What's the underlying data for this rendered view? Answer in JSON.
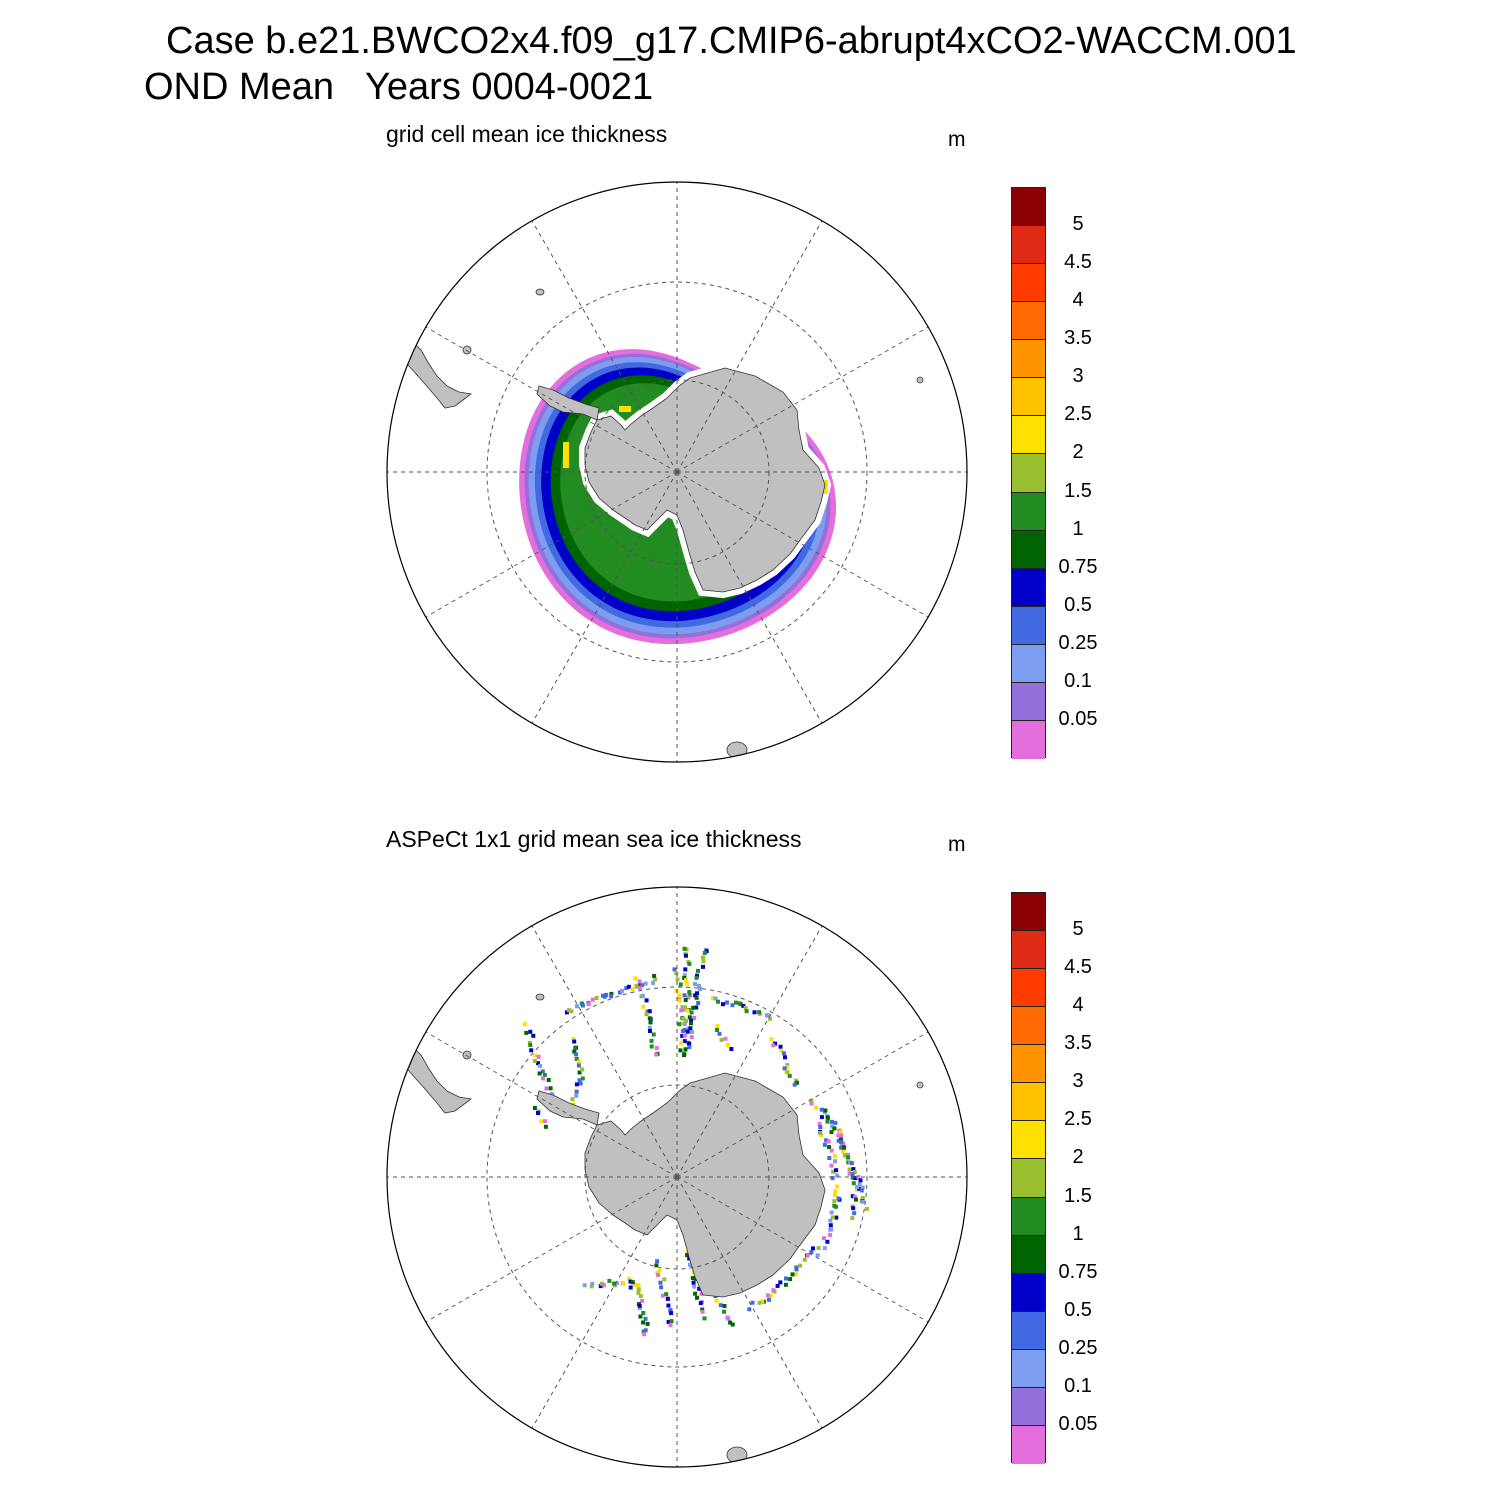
{
  "title": {
    "line1": "Case b.e21.BWCO2x4.f09_g17.CMIP6-abrupt4xCO2-WACCM.001",
    "line2": "OND Mean   Years 0004-0021"
  },
  "colorbar": {
    "labels": [
      "5",
      "4.5",
      "4",
      "3.5",
      "3",
      "2.5",
      "2",
      "1.5",
      "1",
      "0.75",
      "0.5",
      "0.25",
      "0.1",
      "0.05"
    ],
    "colors": [
      "#8b0000",
      "#df2a15",
      "#ff3c00",
      "#ff6a00",
      "#ff9300",
      "#ffc200",
      "#ffe000",
      "#9ac030",
      "#228b22",
      "#006400",
      "#0000c8",
      "#4169e1",
      "#7d9ef0",
      "#9370db",
      "#e46fdc"
    ]
  },
  "panels": [
    {
      "subtitle": "grid cell mean ice thickness",
      "units": "m"
    },
    {
      "subtitle": "ASPeCt 1x1 grid mean sea ice thickness",
      "units": "m"
    }
  ]
}
